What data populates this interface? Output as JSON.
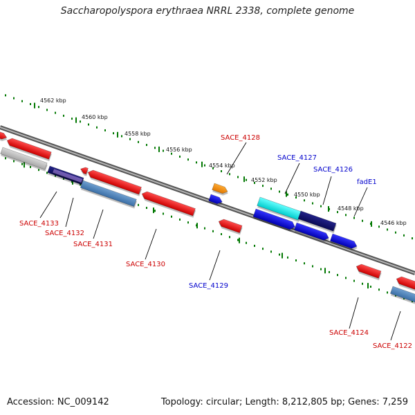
{
  "title": "Saccharopolyspora erythraea NRRL 2338, complete genome",
  "footer": {
    "accession": "Accession: NC_009142",
    "stats": "Topology: circular; Length: 8,212,805 bp; Genes: 7,259"
  },
  "scale_labels": [
    "4562 kbp",
    "4560 kbp",
    "4558 kbp",
    "4556 kbp",
    "4554 kbp",
    "4552 kbp",
    "4550 kbp",
    "4548 kbp",
    "4546 kbp"
  ],
  "colors": {
    "backbone": "#808080",
    "forward_label": "#0000cc",
    "reverse_label": "#cc0000",
    "tick": "#007700",
    "leader": "#000000"
  },
  "genes": [
    {
      "name": "SACE_4133",
      "strand": "reverse",
      "color": "#cc0000"
    },
    {
      "name": "SACE_4132",
      "strand": "reverse",
      "color": "#cc0000"
    },
    {
      "name": "SACE_4131",
      "strand": "reverse",
      "color": "#cc0000"
    },
    {
      "name": "SACE_4130",
      "strand": "reverse",
      "color": "#cc0000"
    },
    {
      "name": "SACE_4129",
      "strand": "forward",
      "color": "#0000cc"
    },
    {
      "name": "SACE_4128",
      "strand": "reverse",
      "color": "#cc0000"
    },
    {
      "name": "SACE_4127",
      "strand": "forward",
      "color": "#0000cc"
    },
    {
      "name": "SACE_4126",
      "strand": "forward",
      "color": "#0000cc"
    },
    {
      "name": "fadE1",
      "strand": "forward",
      "color": "#0000cc"
    },
    {
      "name": "SACE_4124",
      "strand": "reverse",
      "color": "#cc0000"
    },
    {
      "name": "SACE_4122",
      "strand": "reverse",
      "color": "#cc0000"
    }
  ]
}
